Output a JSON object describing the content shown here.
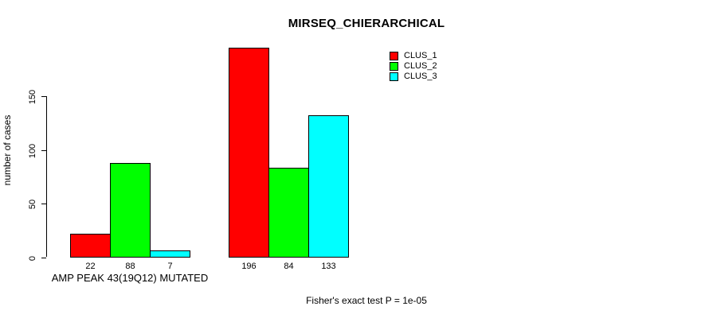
{
  "chart_data": {
    "type": "bar",
    "title": "MIRSEQ_CHIERARCHICAL",
    "ylabel": "number of cases",
    "xlabel": "",
    "categories": [
      "AMP PEAK 43(19Q12) MUTATED",
      ""
    ],
    "series": [
      {
        "name": "CLUS_1",
        "color": "#ff0000",
        "values": [
          22,
          196
        ]
      },
      {
        "name": "CLUS_2",
        "color": "#00ff00",
        "values": [
          88,
          84
        ]
      },
      {
        "name": "CLUS_3",
        "color": "#00ffff",
        "values": [
          7,
          133
        ]
      }
    ],
    "yticks": [
      0,
      50,
      100,
      150
    ],
    "ylim": [
      0,
      196
    ],
    "bar_value_labels_shown": true,
    "grid": false,
    "legend": {
      "position": "top-right",
      "entries": [
        "CLUS_1",
        "CLUS_2",
        "CLUS_3"
      ]
    },
    "annotation": "Fisher's exact test P = 1e-05",
    "colors": {
      "axis": "#000000",
      "text": "#000000",
      "background": "#ffffff"
    }
  }
}
